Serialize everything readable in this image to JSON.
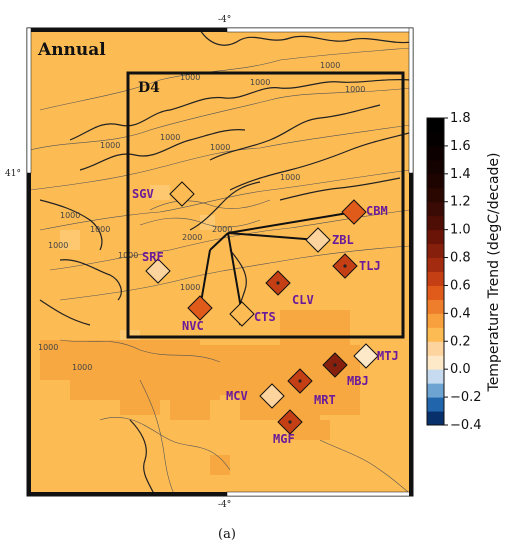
{
  "map": {
    "title": "Annual",
    "domain_label": "D4",
    "lon_labels": [
      "-4°",
      "-4°"
    ],
    "lat_label": "41°",
    "caption": "(a)",
    "background_color": "#fdbb54",
    "contour_labels": [
      "1000",
      "1000",
      "1000",
      "1000",
      "1000",
      "1000",
      "1000",
      "1000",
      "1000",
      "1000",
      "1000",
      "1000",
      "1000",
      "1000",
      "2000",
      "2000",
      "1000"
    ]
  },
  "stations": [
    {
      "code": "SGV",
      "trend": 0.2
    },
    {
      "code": "CBM",
      "trend": 0.5
    },
    {
      "code": "ZBL",
      "trend": 0.15
    },
    {
      "code": "SRF",
      "trend": 0.15
    },
    {
      "code": "TLJ",
      "trend": 0.6
    },
    {
      "code": "CLV",
      "trend": 0.6
    },
    {
      "code": "NVC",
      "trend": 0.5
    },
    {
      "code": "CTS",
      "trend": 0.2
    },
    {
      "code": "MTJ",
      "trend": 0.05
    },
    {
      "code": "MBJ",
      "trend": 0.8
    },
    {
      "code": "MCV",
      "trend": 0.1
    },
    {
      "code": "MRT",
      "trend": 0.65
    },
    {
      "code": "MGF",
      "trend": 0.65
    }
  ],
  "colorbar": {
    "title": "Temperature Trend (degC/decade)",
    "min": -0.4,
    "max": 1.8,
    "ticks": [
      "1.8",
      "1.6",
      "1.4",
      "1.2",
      "1.0",
      "0.8",
      "0.6",
      "0.4",
      "0.2",
      "0.0",
      "−0.2",
      "−0.4"
    ],
    "colors": [
      "#08306b",
      "#2166ac",
      "#6ea4d2",
      "#c6dbef",
      "#fde8c8",
      "#fdd49e",
      "#fdbb54",
      "#f7a03d",
      "#ee7e2c",
      "#e05a1a",
      "#c43f14",
      "#a32b0f",
      "#86200c",
      "#6a1408",
      "#4e0d05",
      "#3a0a04",
      "#2b0702",
      "#1e0401",
      "#140200",
      "#0c0100",
      "#050000",
      "#000000"
    ]
  }
}
